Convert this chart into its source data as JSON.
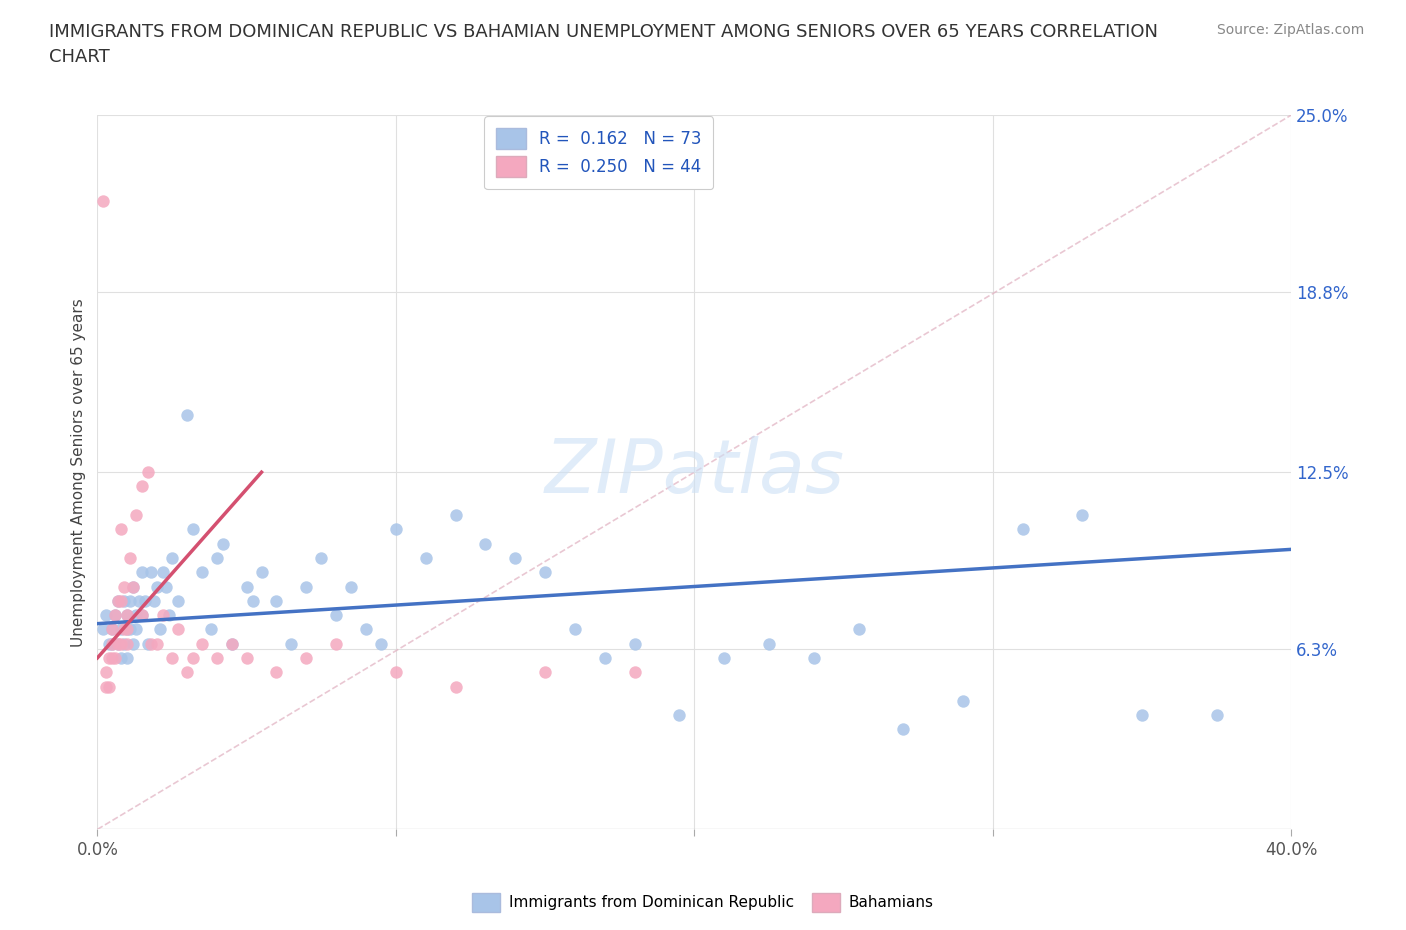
{
  "title": "IMMIGRANTS FROM DOMINICAN REPUBLIC VS BAHAMIAN UNEMPLOYMENT AMONG SENIORS OVER 65 YEARS CORRELATION\nCHART",
  "source": "Source: ZipAtlas.com",
  "xlim": [
    0,
    40
  ],
  "ylim": [
    0,
    25
  ],
  "xlabel_vals": [
    0.0,
    10.0,
    20.0,
    30.0,
    40.0
  ],
  "ylabel_vals": [
    0.0,
    6.3,
    12.5,
    18.8,
    25.0
  ],
  "ylabel_labels": [
    "",
    "6.3%",
    "12.5%",
    "18.8%",
    "25.0%"
  ],
  "blue_color": "#a8c4e8",
  "pink_color": "#f4a8bf",
  "blue_line_color": "#4472c4",
  "pink_line_color": "#d45070",
  "dash_line_color": "#e0b0c0",
  "grid_color": "#e0e0e0",
  "watermark": "ZIPatlas",
  "legend_R1": "0.162",
  "legend_N1": "73",
  "legend_R2": "0.250",
  "legend_N2": "44",
  "legend_label1": "Immigrants from Dominican Republic",
  "legend_label2": "Bahamians",
  "blue_x": [
    0.2,
    0.3,
    0.4,
    0.5,
    0.5,
    0.6,
    0.7,
    0.7,
    0.8,
    0.8,
    0.9,
    0.9,
    1.0,
    1.0,
    1.0,
    1.1,
    1.1,
    1.2,
    1.2,
    1.3,
    1.3,
    1.4,
    1.5,
    1.5,
    1.6,
    1.7,
    1.8,
    1.9,
    2.0,
    2.1,
    2.2,
    2.3,
    2.4,
    2.5,
    2.7,
    3.0,
    3.2,
    3.5,
    3.8,
    4.0,
    4.2,
    4.5,
    5.0,
    5.2,
    5.5,
    6.0,
    6.5,
    7.0,
    7.5,
    8.0,
    8.5,
    9.0,
    9.5,
    10.0,
    11.0,
    12.0,
    13.0,
    14.0,
    15.0,
    16.0,
    17.0,
    18.0,
    19.5,
    21.0,
    22.5,
    24.0,
    25.5,
    27.0,
    29.0,
    31.0,
    33.0,
    35.0,
    37.5
  ],
  "blue_y": [
    7.0,
    7.5,
    6.5,
    7.0,
    6.5,
    7.5,
    8.0,
    6.5,
    7.0,
    6.0,
    8.0,
    6.5,
    7.5,
    7.0,
    6.0,
    8.0,
    7.0,
    6.5,
    8.5,
    7.0,
    7.5,
    8.0,
    9.0,
    7.5,
    8.0,
    6.5,
    9.0,
    8.0,
    8.5,
    7.0,
    9.0,
    8.5,
    7.5,
    9.5,
    8.0,
    14.5,
    10.5,
    9.0,
    7.0,
    9.5,
    10.0,
    6.5,
    8.5,
    8.0,
    9.0,
    8.0,
    6.5,
    8.5,
    9.5,
    7.5,
    8.5,
    7.0,
    6.5,
    10.5,
    9.5,
    11.0,
    10.0,
    9.5,
    9.0,
    7.0,
    6.0,
    6.5,
    4.0,
    6.0,
    6.5,
    6.0,
    7.0,
    3.5,
    4.5,
    10.5,
    11.0,
    4.0,
    4.0
  ],
  "pink_x": [
    0.2,
    0.3,
    0.3,
    0.4,
    0.4,
    0.5,
    0.5,
    0.5,
    0.6,
    0.6,
    0.7,
    0.7,
    0.8,
    0.8,
    0.8,
    0.9,
    0.9,
    1.0,
    1.0,
    1.0,
    1.1,
    1.2,
    1.3,
    1.5,
    1.5,
    1.7,
    1.8,
    2.0,
    2.2,
    2.5,
    2.7,
    3.0,
    3.2,
    3.5,
    4.0,
    4.5,
    5.0,
    6.0,
    7.0,
    8.0,
    10.0,
    12.0,
    15.0,
    18.0
  ],
  "pink_y": [
    22.0,
    5.5,
    5.0,
    5.0,
    6.0,
    6.0,
    6.5,
    7.0,
    6.0,
    7.5,
    8.0,
    6.5,
    10.5,
    6.5,
    8.0,
    8.5,
    7.0,
    7.5,
    6.5,
    7.0,
    9.5,
    8.5,
    11.0,
    12.0,
    7.5,
    12.5,
    6.5,
    6.5,
    7.5,
    6.0,
    7.0,
    5.5,
    6.0,
    6.5,
    6.0,
    6.5,
    6.0,
    5.5,
    6.0,
    6.5,
    5.5,
    5.0,
    5.5,
    5.5
  ],
  "pink_trend_x": [
    0.0,
    5.5
  ],
  "pink_trend_y": [
    6.0,
    12.5
  ]
}
